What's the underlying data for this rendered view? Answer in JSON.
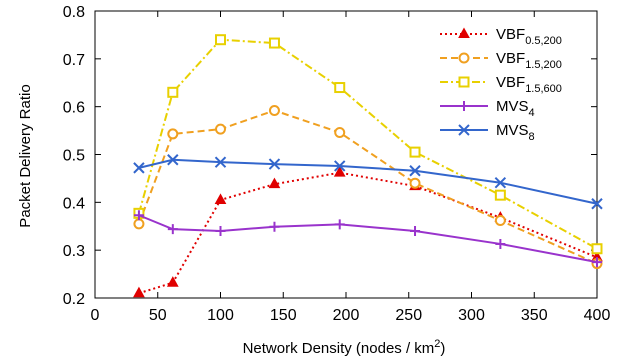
{
  "chart_data": {
    "type": "line",
    "title": "",
    "xlabel": "Network Density (nodes / km",
    "xlabel_sup": "2",
    "xlabel_tail": ")",
    "ylabel": "Packet Delivery Ratio",
    "xlim": [
      0,
      400
    ],
    "ylim": [
      0.2,
      0.8
    ],
    "xticks": [
      0,
      50,
      100,
      150,
      200,
      250,
      300,
      350,
      400
    ],
    "yticks": [
      0.2,
      0.3,
      0.4,
      0.5,
      0.6,
      0.7,
      0.8
    ],
    "grid": false,
    "legend_position": "top-right",
    "series": [
      {
        "name": "VBF",
        "name_sub": "0.5,200",
        "color": "#e00000",
        "line": "dotted",
        "marker": "triangle",
        "x": [
          35,
          62,
          100,
          143,
          195,
          255,
          323,
          400
        ],
        "y": [
          0.21,
          0.232,
          0.405,
          0.438,
          0.462,
          0.434,
          0.368,
          0.285
        ]
      },
      {
        "name": "VBF",
        "name_sub": "1.5,200",
        "color": "#f0a020",
        "line": "dashed",
        "marker": "circle",
        "x": [
          35,
          62,
          100,
          143,
          195,
          255,
          323,
          400
        ],
        "y": [
          0.355,
          0.543,
          0.553,
          0.592,
          0.546,
          0.44,
          0.362,
          0.272
        ]
      },
      {
        "name": "VBF",
        "name_sub": "1.5,600",
        "color": "#e8d000",
        "line": "dashdot",
        "marker": "square",
        "x": [
          35,
          62,
          100,
          143,
          195,
          255,
          323,
          400
        ],
        "y": [
          0.377,
          0.63,
          0.74,
          0.733,
          0.64,
          0.505,
          0.415,
          0.303
        ]
      },
      {
        "name": "MVS",
        "name_sub": "4",
        "color": "#9933cc",
        "line": "solid",
        "marker": "plus",
        "x": [
          35,
          62,
          100,
          143,
          195,
          255,
          323,
          400
        ],
        "y": [
          0.373,
          0.344,
          0.34,
          0.349,
          0.354,
          0.34,
          0.313,
          0.275
        ]
      },
      {
        "name": "MVS",
        "name_sub": "8",
        "color": "#3366cc",
        "line": "solid",
        "marker": "x",
        "x": [
          35,
          62,
          100,
          143,
          195,
          255,
          323,
          400
        ],
        "y": [
          0.472,
          0.489,
          0.484,
          0.48,
          0.476,
          0.466,
          0.441,
          0.397
        ]
      }
    ]
  }
}
